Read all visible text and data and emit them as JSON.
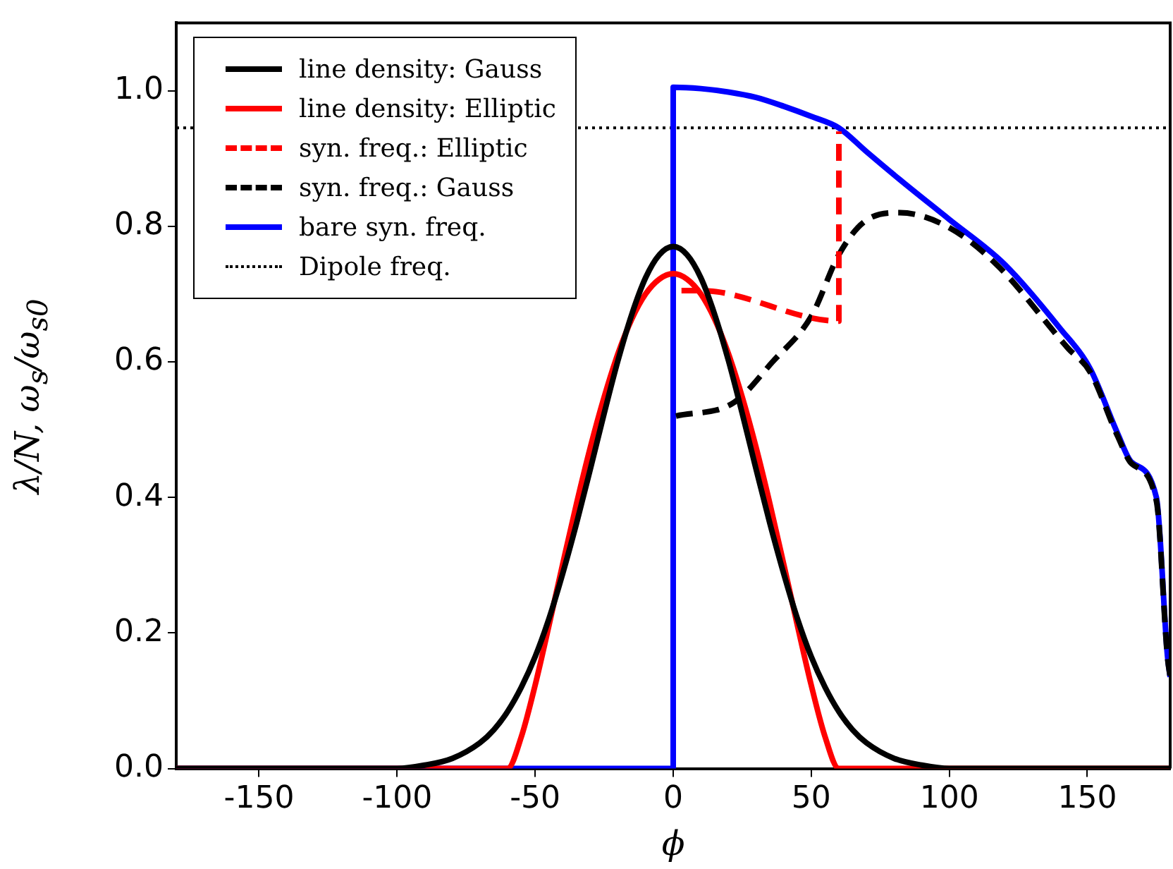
{
  "chart_data": {
    "type": "line",
    "xlabel": "ϕ",
    "ylabel": "λ/N, ω$_{s}$/ω$_{s0}$",
    "xlim": [
      -180,
      180
    ],
    "xticks": [
      -150,
      -100,
      -50,
      0,
      50,
      100,
      150
    ],
    "ylim": [
      0,
      1.1
    ],
    "yticks": [
      {
        "value": 0,
        "label": "0.0"
      },
      0.2,
      0.4,
      0.6,
      0.8,
      {
        "value": 1,
        "label": "1.0"
      }
    ],
    "legend": "top left",
    "series": [
      {
        "name": "line density: Gauss",
        "color": "#000000",
        "line_style": "solid",
        "x": [
          -180,
          -100,
          -90,
          -80,
          -70,
          -65,
          -60,
          -55,
          -50,
          -45,
          -40,
          -35,
          -30,
          -25,
          -20,
          -15,
          -10,
          -5,
          0,
          5,
          10,
          15,
          20,
          25,
          30,
          35,
          40,
          45,
          50,
          55,
          60,
          65,
          70,
          80,
          90,
          100,
          180
        ],
        "values": [
          0,
          0,
          0.005,
          0.015,
          0.038,
          0.057,
          0.084,
          0.12,
          0.165,
          0.221,
          0.288,
          0.362,
          0.442,
          0.524,
          0.602,
          0.67,
          0.724,
          0.758,
          0.77,
          0.758,
          0.724,
          0.67,
          0.602,
          0.524,
          0.442,
          0.362,
          0.288,
          0.221,
          0.165,
          0.12,
          0.084,
          0.057,
          0.038,
          0.015,
          0.005,
          0,
          0
        ]
      },
      {
        "name": "line density: Elliptic",
        "color": "#ff0000",
        "line_style": "solid",
        "x": [
          -180,
          -60,
          -55,
          -50,
          -45,
          -40,
          -35,
          -30,
          -25,
          -20,
          -15,
          -10,
          -5,
          0,
          5,
          10,
          15,
          20,
          25,
          30,
          35,
          40,
          45,
          50,
          55,
          60,
          180
        ],
        "values": [
          0,
          0,
          0.047,
          0.123,
          0.211,
          0.302,
          0.391,
          0.474,
          0.548,
          0.612,
          0.663,
          0.7,
          0.722,
          0.73,
          0.722,
          0.7,
          0.663,
          0.612,
          0.548,
          0.474,
          0.391,
          0.302,
          0.211,
          0.123,
          0.047,
          0,
          0
        ]
      },
      {
        "name": "syn. freq.: Elliptic",
        "color": "#ff0000",
        "line_style": "dashed",
        "x": [
          3,
          10,
          60,
          60
        ],
        "values": [
          0.705,
          0.705,
          0.66,
          0.94
        ]
      },
      {
        "name": "syn. freq.: Gauss",
        "color": "#000000",
        "line_style": "dashed",
        "x": [
          1,
          22,
          36,
          50,
          60,
          69,
          82,
          99,
          117,
          143,
          151,
          161,
          166,
          175,
          179,
          180
        ],
        "values": [
          0.52,
          0.54,
          0.6,
          0.667,
          0.758,
          0.806,
          0.82,
          0.8,
          0.744,
          0.62,
          0.585,
          0.49,
          0.45,
          0.395,
          0.165,
          0.135
        ]
      },
      {
        "name": "bare syn. freq.",
        "color": "#0000ff",
        "line_style": "solid",
        "x": [
          -180,
          0,
          0,
          10,
          20,
          30,
          40,
          50,
          60,
          70,
          82,
          100,
          120,
          140,
          151,
          161,
          166,
          175,
          179,
          180
        ],
        "values": [
          0,
          0,
          1.005,
          1.003,
          0.998,
          0.99,
          0.977,
          0.962,
          0.945,
          0.91,
          0.869,
          0.81,
          0.744,
          0.65,
          0.59,
          0.494,
          0.452,
          0.4,
          0.167,
          0.135
        ]
      },
      {
        "name": "Dipole freq.",
        "color": "#000000",
        "line_style": "dotted",
        "x": [
          -180,
          180
        ],
        "values": [
          0.945,
          0.945
        ]
      }
    ]
  }
}
